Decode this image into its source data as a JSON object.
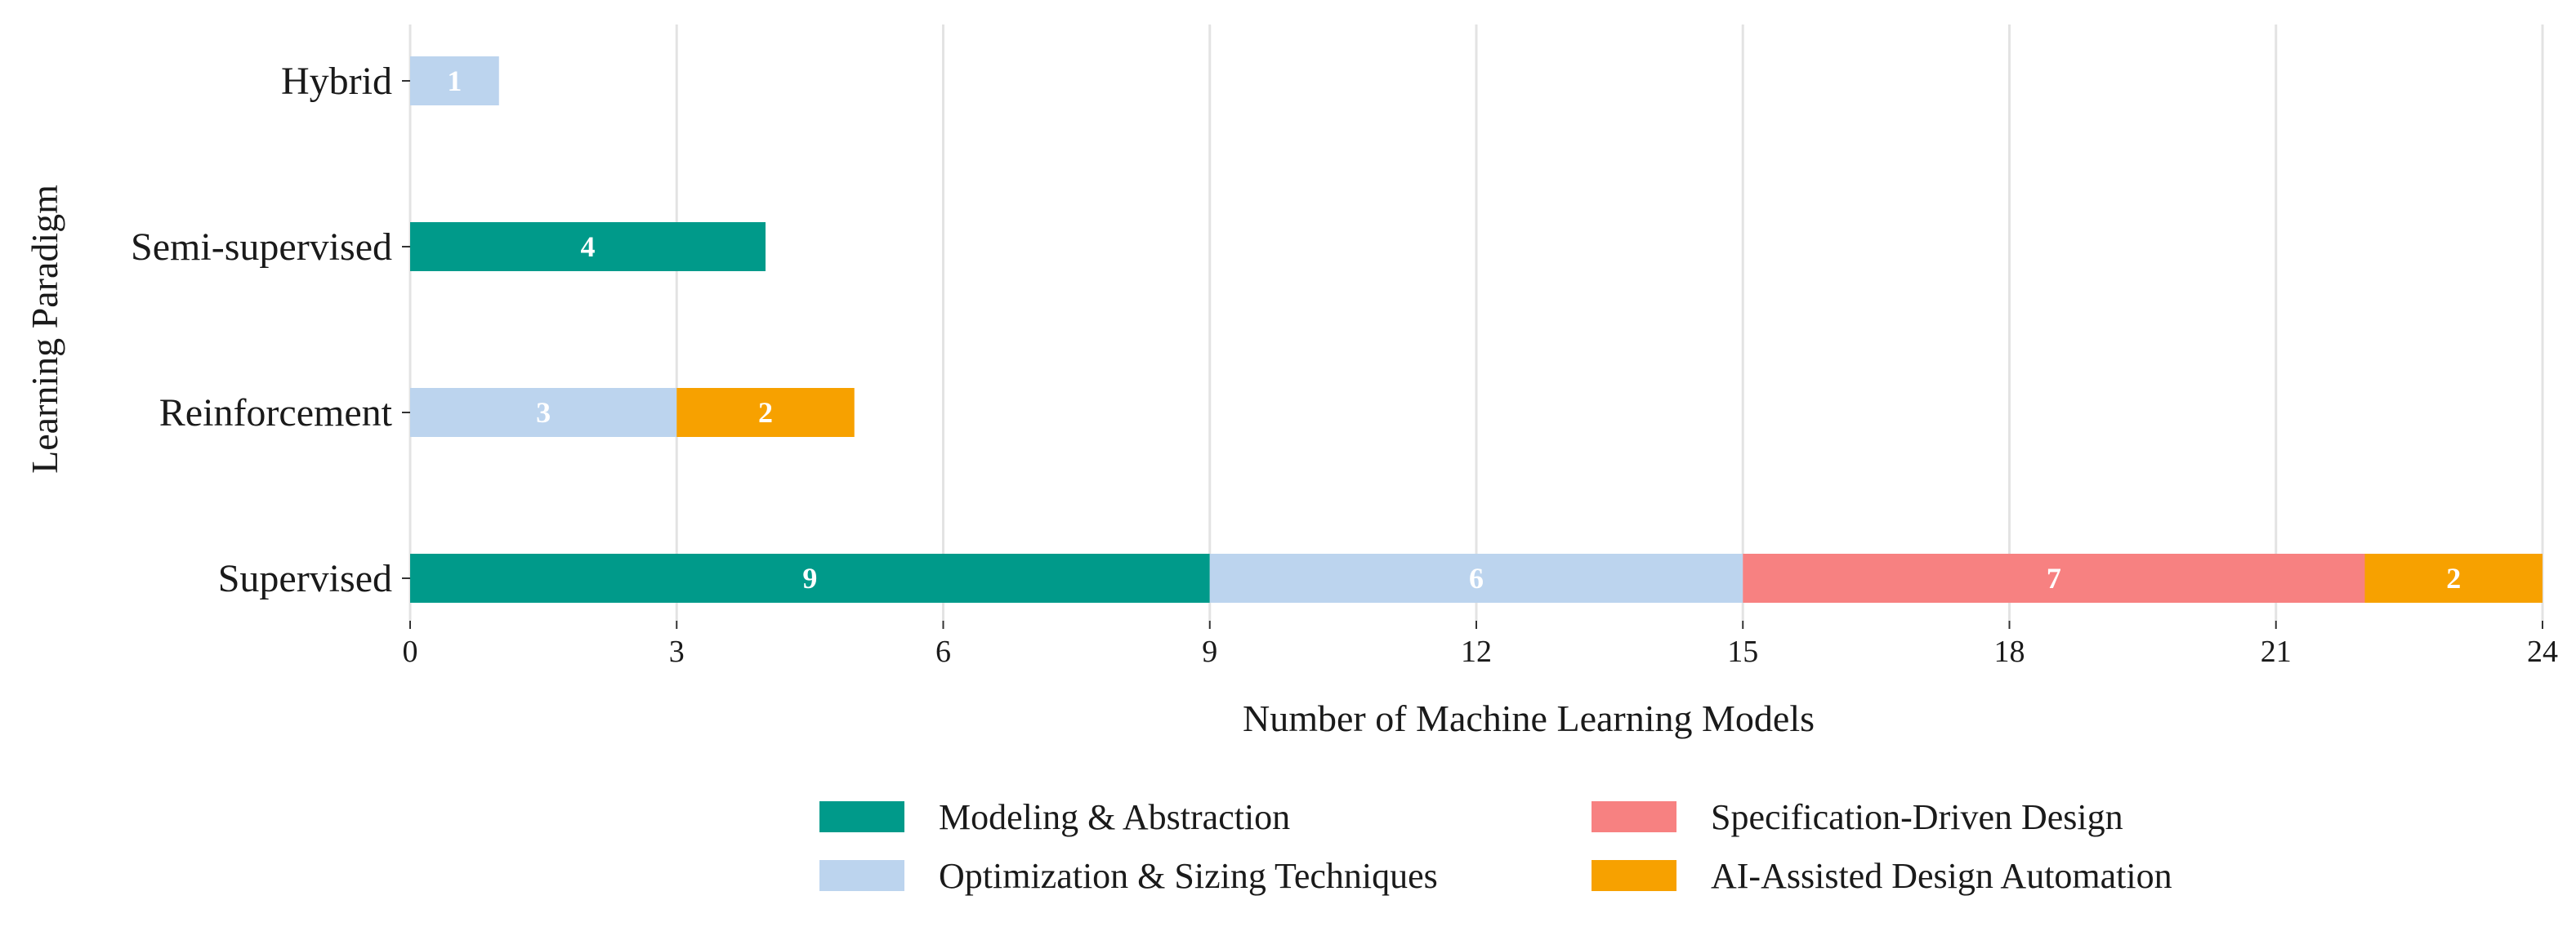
{
  "chart_data": {
    "type": "bar",
    "orientation": "horizontal",
    "stacked": true,
    "categories": [
      "Supervised",
      "Reinforcement",
      "Semi-supervised",
      "Hybrid"
    ],
    "series": [
      {
        "name": "Modeling & Abstraction",
        "color": "#009a8a",
        "values": [
          9,
          0,
          4,
          0
        ]
      },
      {
        "name": "Optimization & Sizing Techniques",
        "color": "#bcd4ee",
        "values": [
          6,
          3,
          0,
          1
        ]
      },
      {
        "name": "Specification-Driven Design",
        "color": "#f78181",
        "values": [
          7,
          0,
          0,
          0
        ]
      },
      {
        "name": "AI-Assisted Design Automation",
        "color": "#f7a100",
        "values": [
          2,
          2,
          0,
          0
        ]
      }
    ],
    "xlabel": "Number of Machine Learning Models",
    "ylabel": "Learning Paradigm",
    "xlim": [
      0,
      24
    ],
    "xticks": [
      0,
      3,
      6,
      9,
      12,
      15,
      18,
      21,
      24
    ],
    "grid": "vertical",
    "legend_position": "bottom"
  }
}
